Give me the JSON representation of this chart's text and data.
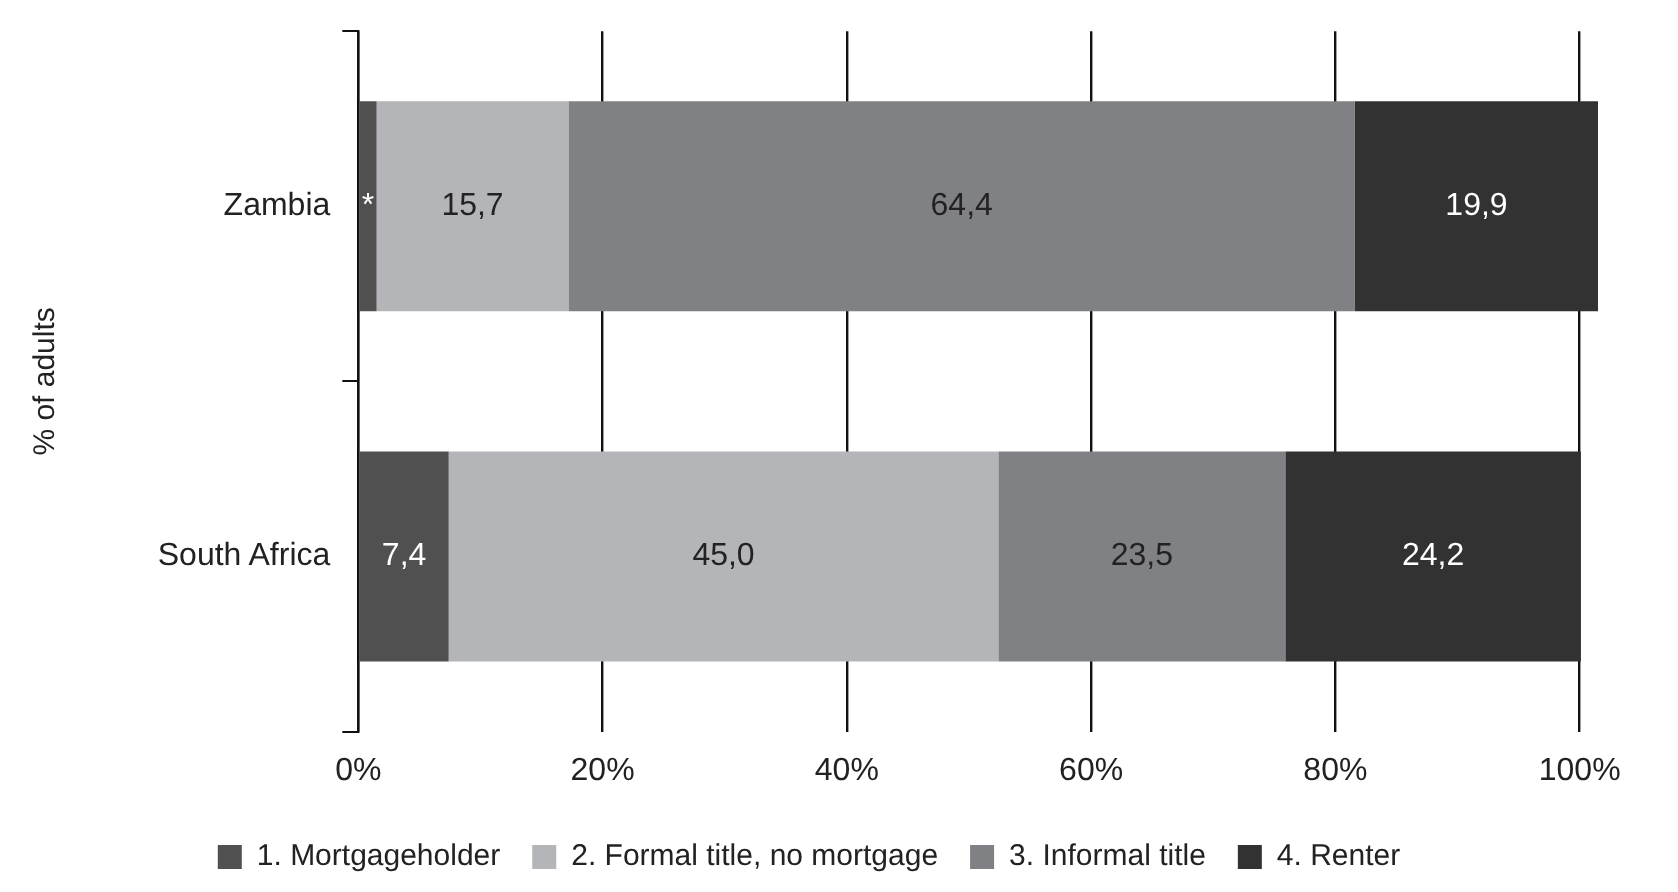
{
  "chart_data": {
    "type": "bar",
    "orientation": "horizontal",
    "stacked": true,
    "ylabel": "% of adults",
    "categories": [
      "Zambia",
      "South Africa"
    ],
    "series": [
      {
        "name": "1. Mortgageholder",
        "color": "#505050",
        "values": [
          1.5,
          7.4
        ],
        "value_labels": [
          "*",
          "7,4"
        ]
      },
      {
        "name": "2. Formal title, no mortgage",
        "color": "#b4b5b8",
        "values": [
          15.7,
          45.0
        ],
        "value_labels": [
          "15,7",
          "45,0"
        ]
      },
      {
        "name": "3. Informal title",
        "color": "#808184",
        "values": [
          64.4,
          23.5
        ],
        "value_labels": [
          "64,4",
          "23,5"
        ]
      },
      {
        "name": "4. Renter",
        "color": "#323232",
        "values": [
          19.9,
          24.2
        ],
        "value_labels": [
          "19,9",
          "24,2"
        ]
      }
    ],
    "xlim": [
      0,
      101.5
    ],
    "xticks": [
      {
        "value": 0,
        "label": "0%"
      },
      {
        "value": 20,
        "label": "20%"
      },
      {
        "value": 40,
        "label": "40%"
      },
      {
        "value": 60,
        "label": "60%"
      },
      {
        "value": 80,
        "label": "80%"
      },
      {
        "value": 100,
        "label": "100%"
      }
    ],
    "grid": "x",
    "legend": "bottom"
  }
}
